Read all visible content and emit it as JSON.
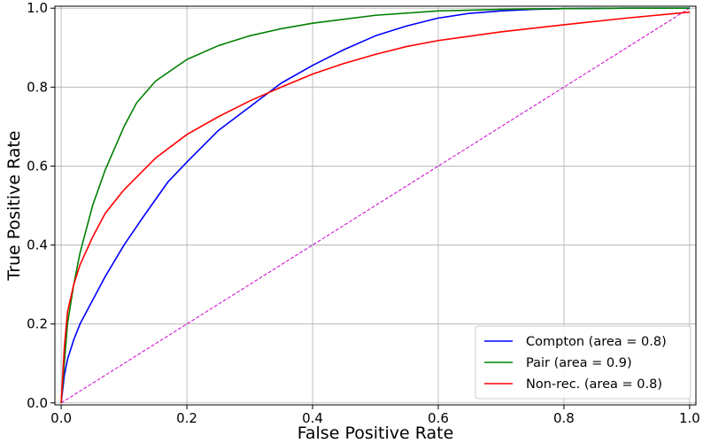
{
  "chart_data": {
    "type": "line",
    "title": "",
    "xlabel": "False Positive Rate",
    "ylabel": "True Positive Rate",
    "xlim": [
      -0.01,
      1.01
    ],
    "ylim": [
      -0.005,
      1.005
    ],
    "xticks": [
      "0.0",
      "0.2",
      "0.4",
      "0.6",
      "0.8",
      "1.0"
    ],
    "yticks": [
      "0.0",
      "0.2",
      "0.4",
      "0.6",
      "0.8",
      "1.0"
    ],
    "grid": true,
    "legend_position": "lower-right",
    "series": [
      {
        "name": "Compton (area = 0.8)",
        "color": "#0000ff",
        "x": [
          0,
          0.005,
          0.01,
          0.02,
          0.03,
          0.05,
          0.07,
          0.1,
          0.13,
          0.17,
          0.2,
          0.25,
          0.3,
          0.35,
          0.4,
          0.45,
          0.5,
          0.55,
          0.6,
          0.65,
          0.7,
          0.75,
          0.8,
          0.9,
          1.0
        ],
        "y": [
          0,
          0.07,
          0.11,
          0.16,
          0.2,
          0.26,
          0.32,
          0.4,
          0.47,
          0.56,
          0.61,
          0.69,
          0.75,
          0.81,
          0.855,
          0.895,
          0.93,
          0.955,
          0.975,
          0.987,
          0.993,
          0.997,
          0.999,
          1.0,
          1.0
        ]
      },
      {
        "name": "Pair (area = 0.9)",
        "color": "#008000",
        "x": [
          0,
          0.005,
          0.01,
          0.02,
          0.03,
          0.05,
          0.07,
          0.1,
          0.12,
          0.15,
          0.2,
          0.25,
          0.3,
          0.35,
          0.4,
          0.5,
          0.6,
          0.7,
          0.8,
          0.9,
          1.0
        ],
        "y": [
          0,
          0.1,
          0.2,
          0.3,
          0.38,
          0.5,
          0.59,
          0.7,
          0.76,
          0.815,
          0.87,
          0.905,
          0.93,
          0.948,
          0.962,
          0.982,
          0.993,
          0.997,
          0.999,
          1.0,
          1.0
        ]
      },
      {
        "name": "Non-rec. (area = 0.8)",
        "color": "#ff0000",
        "x": [
          0,
          0.005,
          0.01,
          0.02,
          0.03,
          0.05,
          0.07,
          0.1,
          0.15,
          0.2,
          0.25,
          0.3,
          0.35,
          0.4,
          0.45,
          0.5,
          0.55,
          0.6,
          0.7,
          0.8,
          0.9,
          1.0
        ],
        "y": [
          0,
          0.14,
          0.23,
          0.3,
          0.35,
          0.42,
          0.48,
          0.54,
          0.62,
          0.68,
          0.725,
          0.765,
          0.8,
          0.833,
          0.86,
          0.883,
          0.903,
          0.918,
          0.94,
          0.958,
          0.975,
          0.99
        ]
      }
    ],
    "reference_line": {
      "color": "#cc00cc",
      "x": [
        0,
        1
      ],
      "y": [
        0,
        1
      ]
    }
  }
}
